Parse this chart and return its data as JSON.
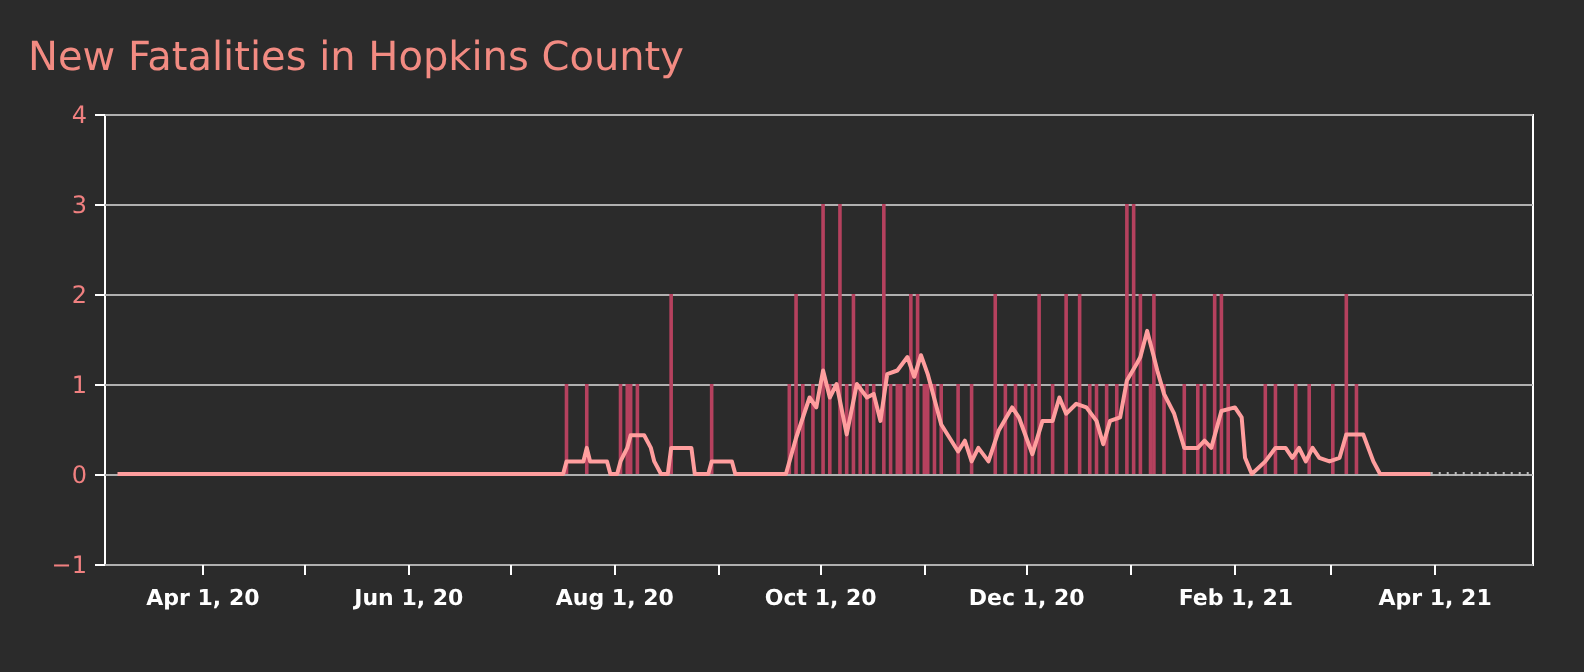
{
  "chart_data": {
    "type": "bar",
    "title": "New Fatalities in Hopkins County",
    "xlim": [
      "2020-03-03",
      "2021-04-30"
    ],
    "xticks": [
      {
        "value": "2020-04-01",
        "label": "Apr 1, 20"
      },
      {
        "value": "2020-05-01",
        "label": null
      },
      {
        "value": "2020-06-01",
        "label": "Jun 1, 20"
      },
      {
        "value": "2020-07-01",
        "label": null
      },
      {
        "value": "2020-08-01",
        "label": "Aug 1, 20"
      },
      {
        "value": "2020-09-01",
        "label": null
      },
      {
        "value": "2020-10-01",
        "label": "Oct 1, 20"
      },
      {
        "value": "2020-11-01",
        "label": null
      },
      {
        "value": "2020-12-01",
        "label": "Dec 1, 20"
      },
      {
        "value": "2021-01-01",
        "label": null
      },
      {
        "value": "2021-02-01",
        "label": "Feb 1, 21"
      },
      {
        "value": "2021-03-01",
        "label": null
      },
      {
        "value": "2021-04-01",
        "label": "Apr 1, 21"
      }
    ],
    "ylim": [
      -1,
      4
    ],
    "yticks": [
      -1,
      0,
      1,
      2,
      3,
      4
    ],
    "grid": "y",
    "series": [
      {
        "color": "#b5415e",
        "x": [
          "2020-07-18",
          "2020-07-24",
          "2020-08-03",
          "2020-08-05",
          "2020-08-06",
          "2020-08-08",
          "2020-08-18",
          "2020-08-30",
          "2020-09-22",
          "2020-09-24",
          "2020-09-26",
          "2020-09-29",
          "2020-10-02",
          "2020-10-04",
          "2020-10-07",
          "2020-10-09",
          "2020-10-11",
          "2020-10-13",
          "2020-10-15",
          "2020-10-17",
          "2020-10-20",
          "2020-10-22",
          "2020-10-24",
          "2020-10-25",
          "2020-10-27",
          "2020-10-28",
          "2020-10-30",
          "2020-11-01",
          "2020-11-02",
          "2020-11-04",
          "2020-11-06",
          "2020-11-11",
          "2020-11-15",
          "2020-11-22",
          "2020-11-25",
          "2020-11-28",
          "2020-12-01",
          "2020-12-03",
          "2020-12-05",
          "2020-12-09",
          "2020-12-13",
          "2020-12-17",
          "2020-12-20",
          "2020-12-22",
          "2020-12-25",
          "2020-12-28",
          "2020-12-31",
          "2021-01-02",
          "2021-01-04",
          "2021-01-07",
          "2021-01-08",
          "2021-01-11",
          "2021-01-17",
          "2021-01-21",
          "2021-01-23",
          "2021-01-26",
          "2021-01-28",
          "2021-01-30",
          "2021-02-10",
          "2021-02-13",
          "2021-02-19",
          "2021-02-23",
          "2021-03-02",
          "2021-03-06",
          "2021-03-09"
        ],
        "values": [
          1,
          1,
          1,
          1,
          1,
          1,
          2,
          1,
          1,
          2,
          1,
          1,
          3,
          1,
          3,
          1,
          2,
          1,
          1,
          1,
          3,
          1,
          1,
          1,
          1,
          2,
          2,
          1,
          1,
          1,
          1,
          1,
          1,
          2,
          1,
          1,
          1,
          1,
          2,
          1,
          2,
          2,
          1,
          1,
          1,
          1,
          3,
          3,
          2,
          1,
          2,
          1,
          1,
          1,
          1,
          2,
          2,
          1,
          1,
          1,
          1,
          1,
          1,
          2,
          1
        ]
      },
      {
        "type": "line",
        "color": "#ff9e9e",
        "x": [
          "2020-03-07",
          "2020-07-17",
          "2020-07-18",
          "2020-07-23",
          "2020-07-24",
          "2020-07-25",
          "2020-07-30",
          "2020-07-31",
          "2020-08-02",
          "2020-08-03",
          "2020-08-05",
          "2020-08-06",
          "2020-08-08",
          "2020-08-10",
          "2020-08-12",
          "2020-08-13",
          "2020-08-15",
          "2020-08-17",
          "2020-08-18",
          "2020-08-24",
          "2020-08-25",
          "2020-08-29",
          "2020-08-30",
          "2020-09-05",
          "2020-09-06",
          "2020-09-21",
          "2020-09-24",
          "2020-09-28",
          "2020-09-30",
          "2020-10-02",
          "2020-10-04",
          "2020-10-06",
          "2020-10-09",
          "2020-10-12",
          "2020-10-15",
          "2020-10-17",
          "2020-10-19",
          "2020-10-21",
          "2020-10-24",
          "2020-10-27",
          "2020-10-29",
          "2020-10-31",
          "2020-11-02",
          "2020-11-06",
          "2020-11-11",
          "2020-11-13",
          "2020-11-15",
          "2020-11-17",
          "2020-11-20",
          "2020-11-23",
          "2020-11-27",
          "2020-11-29",
          "2020-12-03",
          "2020-12-06",
          "2020-12-09",
          "2020-12-11",
          "2020-12-13",
          "2020-12-16",
          "2020-12-19",
          "2020-12-22",
          "2020-12-24",
          "2020-12-26",
          "2020-12-29",
          "2020-12-31",
          "2021-01-03",
          "2021-01-04",
          "2021-01-06",
          "2021-01-08",
          "2021-01-09",
          "2021-01-11",
          "2021-01-14",
          "2021-01-17",
          "2021-01-21",
          "2021-01-23",
          "2021-01-25",
          "2021-01-28",
          "2021-02-01",
          "2021-02-03",
          "2021-02-04",
          "2021-02-06",
          "2021-02-10",
          "2021-02-13",
          "2021-02-16",
          "2021-02-18",
          "2021-02-20",
          "2021-02-22",
          "2021-02-24",
          "2021-02-26",
          "2021-03-01",
          "2021-03-04",
          "2021-03-06",
          "2021-03-11",
          "2021-03-14",
          "2021-03-16",
          "2021-03-31"
        ],
        "values": [
          0,
          0,
          0.14,
          0.14,
          0.29,
          0.14,
          0.14,
          0,
          0,
          0.14,
          0.29,
          0.43,
          0.43,
          0.43,
          0.29,
          0.14,
          0,
          0,
          0.29,
          0.29,
          0,
          0,
          0.14,
          0.14,
          0,
          0,
          0.4,
          0.85,
          0.74,
          1.15,
          0.85,
          1.0,
          0.44,
          1.0,
          0.85,
          0.89,
          0.59,
          1.11,
          1.15,
          1.3,
          1.08,
          1.32,
          1.11,
          0.55,
          0.25,
          0.37,
          0.14,
          0.29,
          0.14,
          0.48,
          0.74,
          0.63,
          0.22,
          0.59,
          0.59,
          0.85,
          0.67,
          0.78,
          0.74,
          0.59,
          0.33,
          0.59,
          0.63,
          1.04,
          1.23,
          1.3,
          1.59,
          1.3,
          1.15,
          0.89,
          0.67,
          0.29,
          0.29,
          0.37,
          0.29,
          0.7,
          0.74,
          0.63,
          0.18,
          0,
          0.14,
          0.29,
          0.29,
          0.18,
          0.29,
          0.14,
          0.29,
          0.18,
          0.14,
          0.18,
          0.44,
          0.44,
          0.14,
          0,
          0
        ]
      },
      {
        "type": "line",
        "line_style": "dotted",
        "color": "#bbbbbb",
        "x": [
          "2021-03-31",
          "2021-04-30"
        ],
        "values": [
          0,
          0
        ]
      }
    ]
  }
}
